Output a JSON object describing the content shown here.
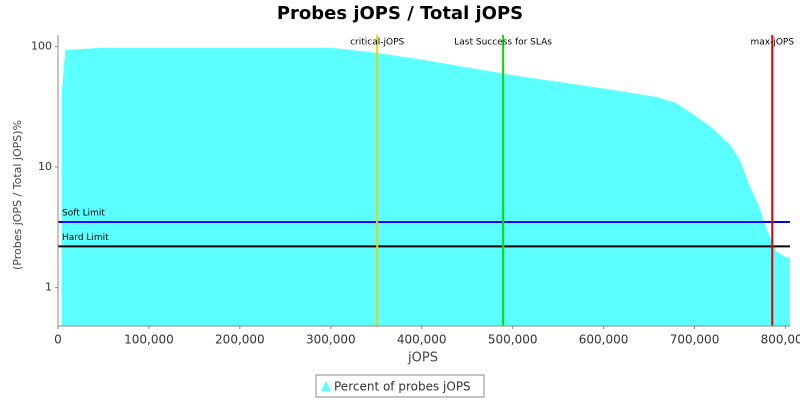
{
  "chart_data": {
    "type": "area",
    "title": "Probes jOPS / Total jOPS",
    "x_label": "jOPS",
    "y_label": "(Probes jOPS / Total jOPS)%",
    "log_y": true,
    "xlim": [
      0,
      805000
    ],
    "ylim": [
      0.48,
      125
    ],
    "xticks": [
      0,
      {
        "value": 100000,
        "label": "100,000"
      },
      {
        "value": 200000,
        "label": "200,000"
      },
      {
        "value": 300000,
        "label": "300,000"
      },
      {
        "value": 400000,
        "label": "400,000"
      },
      {
        "value": 500000,
        "label": "500,000"
      },
      {
        "value": 600000,
        "label": "600,000"
      },
      {
        "value": 700000,
        "label": "700,000"
      },
      {
        "value": 800000,
        "label": "800,000"
      }
    ],
    "yticks": [
      1,
      10,
      100
    ],
    "legend": "bottom",
    "series": [
      {
        "name": "Percent of probes jOPS",
        "color": "#5bffff",
        "x": [
          4000,
          8000,
          50000,
          300000,
          350000,
          400000,
          500000,
          600000,
          660000,
          680000,
          700000,
          720000,
          740000,
          750000,
          760000,
          770000,
          780000,
          790000,
          800000,
          805000
        ],
        "values": [
          40,
          94,
          98,
          98,
          89,
          78,
          58,
          45,
          38,
          34,
          27,
          21,
          15,
          11.5,
          7.2,
          4.9,
          3.0,
          2.0,
          1.8,
          1.77
        ]
      }
    ],
    "x_markers": [
      {
        "label": "critical-jOPS",
        "value": 351000,
        "color": "#f0d000"
      },
      {
        "label": "Last Success for SLAs",
        "value": 489500,
        "color": "#00e000"
      },
      {
        "label": "max-jOPS",
        "value": 785500,
        "color": "#e00000"
      }
    ],
    "y_markers": [
      {
        "label": "Soft Limit",
        "value": 3.5,
        "color": "#0000ff"
      },
      {
        "label": "Hard Limit",
        "value": 2.2,
        "color": "#000000"
      }
    ]
  }
}
